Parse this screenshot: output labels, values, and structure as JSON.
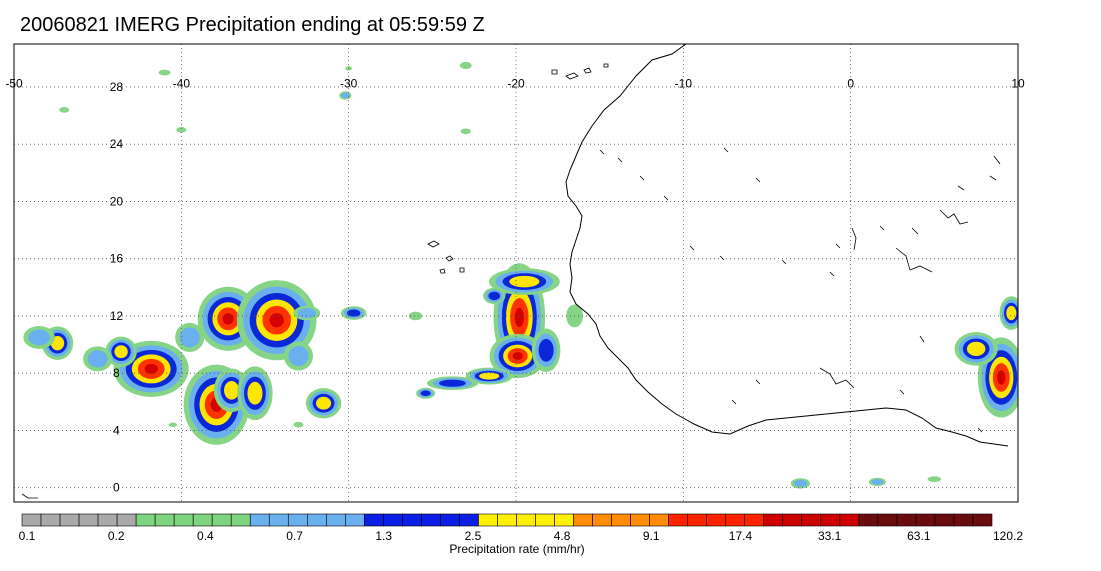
{
  "title": "20060821 IMERG Precipitation ending at 05:59:59 Z",
  "map": {
    "lon_range": [
      -50,
      10
    ],
    "lat_range": [
      -1,
      31
    ],
    "lon_ticks": [
      "-50",
      "-40",
      "-30",
      "-20",
      "-10",
      "0",
      "10"
    ],
    "lat_ticks": [
      "28",
      "24",
      "20",
      "16",
      "12",
      "8",
      "4",
      "0"
    ],
    "grid": true
  },
  "colorbar": {
    "title": "Precipitation rate (mm/hr)",
    "labels": [
      "0.1",
      "0.2",
      "0.4",
      "0.7",
      "1.3",
      "2.5",
      "4.8",
      "9.1",
      "17.4",
      "33.1",
      "63.1",
      "120.2"
    ],
    "color_groups": [
      {
        "color": "#a9a9a9",
        "count": 6
      },
      {
        "color": "#7fd47f",
        "count": 6
      },
      {
        "color": "#6ab0ee",
        "count": 6
      },
      {
        "color": "#0a1ee6",
        "count": 6
      },
      {
        "color": "#fff000",
        "count": 5
      },
      {
        "color": "#ff8c00",
        "count": 5
      },
      {
        "color": "#ff2200",
        "count": 5
      },
      {
        "color": "#cc0000",
        "count": 5
      },
      {
        "color": "#6a0d0d",
        "count": 7
      }
    ]
  },
  "precip_cells": [
    {
      "lon": -37.2,
      "lat": 11.8,
      "w": 1.3,
      "h": 1.6,
      "i": 4
    },
    {
      "lon": -34.3,
      "lat": 11.7,
      "w": 1.7,
      "h": 2.0,
      "i": 4
    },
    {
      "lon": -41.8,
      "lat": 8.3,
      "w": 1.6,
      "h": 1.4,
      "i": 4
    },
    {
      "lon": -37.9,
      "lat": 5.8,
      "w": 1.4,
      "h": 2.0,
      "i": 4
    },
    {
      "lon": -37.0,
      "lat": 6.8,
      "w": 0.9,
      "h": 1.3,
      "i": 3
    },
    {
      "lon": -35.6,
      "lat": 6.6,
      "w": 0.9,
      "h": 1.6,
      "i": 3
    },
    {
      "lon": -47.4,
      "lat": 10.1,
      "w": 0.8,
      "h": 1.0,
      "i": 3
    },
    {
      "lon": -43.6,
      "lat": 9.5,
      "w": 0.8,
      "h": 0.9,
      "i": 3
    },
    {
      "lon": -31.5,
      "lat": 5.9,
      "w": 0.9,
      "h": 0.9,
      "i": 3
    },
    {
      "lon": -19.8,
      "lat": 11.9,
      "w": 1.1,
      "h": 2.7,
      "i": 4
    },
    {
      "lon": -19.5,
      "lat": 14.4,
      "w": 1.8,
      "h": 0.8,
      "i": 3
    },
    {
      "lon": -19.9,
      "lat": 9.2,
      "w": 1.2,
      "h": 1.1,
      "i": 4
    },
    {
      "lon": -21.6,
      "lat": 7.8,
      "w": 1.2,
      "h": 0.5,
      "i": 3
    },
    {
      "lon": -23.8,
      "lat": 7.3,
      "w": 1.6,
      "h": 0.5,
      "i": 2
    },
    {
      "lon": -18.2,
      "lat": 9.6,
      "w": 0.9,
      "h": 1.6,
      "i": 2
    },
    {
      "lon": -21.3,
      "lat": 13.4,
      "w": 0.7,
      "h": 0.6,
      "i": 2
    },
    {
      "lon": -25.4,
      "lat": 6.6,
      "w": 0.6,
      "h": 0.4,
      "i": 2
    },
    {
      "lon": -29.7,
      "lat": 12.2,
      "w": 0.8,
      "h": 0.5,
      "i": 2
    },
    {
      "lon": -32.5,
      "lat": 12.2,
      "w": 1.1,
      "h": 0.7,
      "i": 1
    },
    {
      "lon": 9.0,
      "lat": 7.7,
      "w": 1.0,
      "h": 2.0,
      "i": 4
    },
    {
      "lon": 7.5,
      "lat": 9.7,
      "w": 1.1,
      "h": 1.0,
      "i": 3
    },
    {
      "lon": 9.6,
      "lat": 12.2,
      "w": 0.6,
      "h": 1.0,
      "i": 3
    },
    {
      "lon": -48.5,
      "lat": 10.5,
      "w": 1.3,
      "h": 1.1,
      "i": 1
    },
    {
      "lon": -45.0,
      "lat": 9.0,
      "w": 1.2,
      "h": 1.2,
      "i": 1
    },
    {
      "lon": -39.5,
      "lat": 10.5,
      "w": 1.2,
      "h": 1.4,
      "i": 1
    },
    {
      "lon": -33.0,
      "lat": 9.2,
      "w": 1.2,
      "h": 1.4,
      "i": 1
    },
    {
      "lon": -26.0,
      "lat": 12.0,
      "w": 0.8,
      "h": 0.6,
      "i": 0
    },
    {
      "lon": -16.5,
      "lat": 12.0,
      "w": 1.0,
      "h": 1.6,
      "i": 0
    },
    {
      "lon": -3.0,
      "lat": 0.3,
      "w": 0.8,
      "h": 0.5,
      "i": 1
    },
    {
      "lon": 1.6,
      "lat": 0.4,
      "w": 0.7,
      "h": 0.4,
      "i": 1
    },
    {
      "lon": 5.0,
      "lat": 0.6,
      "w": 0.8,
      "h": 0.4,
      "i": 0
    },
    {
      "lon": -47.0,
      "lat": 26.4,
      "w": 0.6,
      "h": 0.4,
      "i": 0
    },
    {
      "lon": -41.0,
      "lat": 29.0,
      "w": 0.7,
      "h": 0.4,
      "i": 0
    },
    {
      "lon": -30.2,
      "lat": 27.4,
      "w": 0.5,
      "h": 0.4,
      "i": 1
    },
    {
      "lon": -23.0,
      "lat": 29.5,
      "w": 0.7,
      "h": 0.5,
      "i": 0
    },
    {
      "lon": -23.0,
      "lat": 24.9,
      "w": 0.6,
      "h": 0.4,
      "i": 0
    },
    {
      "lon": -40.0,
      "lat": 25.0,
      "w": 0.6,
      "h": 0.4,
      "i": 0
    },
    {
      "lon": -30.0,
      "lat": 29.3,
      "w": 0.4,
      "h": 0.3,
      "i": 0
    },
    {
      "lon": -33.0,
      "lat": 4.4,
      "w": 0.6,
      "h": 0.4,
      "i": 0
    },
    {
      "lon": -40.5,
      "lat": 4.4,
      "w": 0.5,
      "h": 0.3,
      "i": 0
    }
  ]
}
